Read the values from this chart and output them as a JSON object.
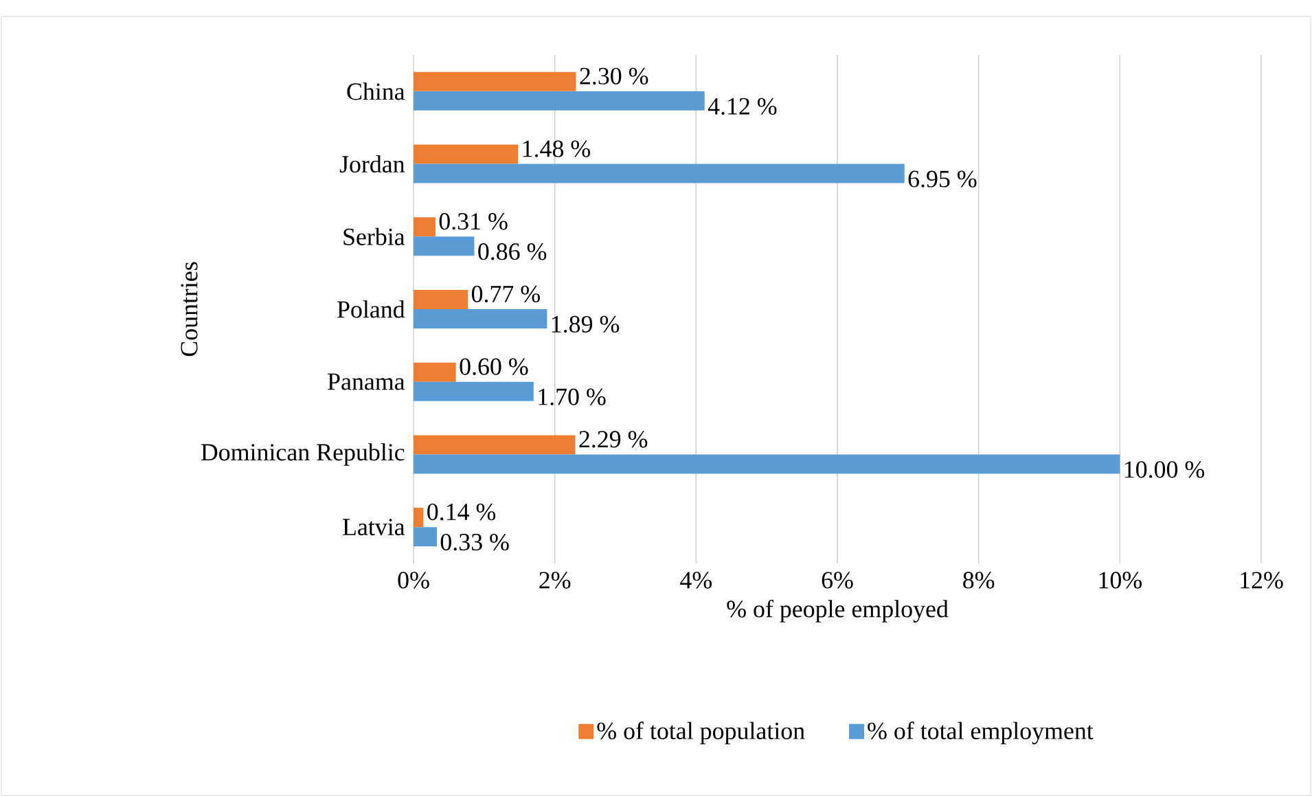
{
  "chart_data": {
    "type": "bar",
    "orientation": "horizontal",
    "xlabel": "% of people employed",
    "ylabel": "Countries",
    "categories": [
      "China",
      "Jordan",
      "Serbia",
      "Poland",
      "Panama",
      "Dominican Republic",
      "Latvia"
    ],
    "series": [
      {
        "name": "% of total population",
        "color": "#ed7d31",
        "values": [
          2.3,
          1.48,
          0.31,
          0.77,
          0.6,
          2.29,
          0.14
        ],
        "value_labels": [
          "2.30 %",
          "1.48 %",
          "0.31 %",
          "0.77 %",
          "0.60 %",
          "2.29 %",
          "0.14 %"
        ]
      },
      {
        "name": "% of total employment",
        "color": "#5b9bd5",
        "values": [
          4.12,
          6.95,
          0.86,
          1.89,
          1.7,
          10.0,
          0.33
        ],
        "value_labels": [
          "4.12 %",
          "6.95 %",
          "0.86 %",
          "1.89 %",
          "1.70 %",
          "10.00 %",
          "0.33 %"
        ]
      }
    ],
    "xlim": [
      0,
      12
    ],
    "xticks": [
      {
        "value": 0,
        "label": "0%"
      },
      {
        "value": 2,
        "label": "2%"
      },
      {
        "value": 4,
        "label": "4%"
      },
      {
        "value": 6,
        "label": "6%"
      },
      {
        "value": 8,
        "label": "8%"
      },
      {
        "value": 10,
        "label": "10%"
      },
      {
        "value": 12,
        "label": "12%"
      }
    ],
    "grid": "x",
    "legend": "bottom"
  }
}
